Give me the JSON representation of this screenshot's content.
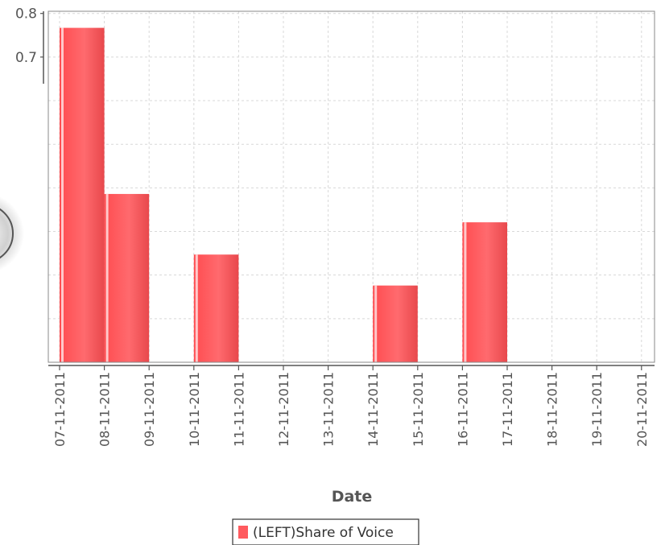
{
  "chart_data": {
    "type": "bar",
    "xlabel": "Date",
    "ylabel": "",
    "x": [
      "07-11-2011",
      "08-11-2011",
      "09-11-2011",
      "10-11-2011",
      "11-11-2011",
      "12-11-2011",
      "13-11-2011",
      "14-11-2011",
      "15-11-2011",
      "16-11-2011",
      "17-11-2011",
      "18-11-2011",
      "19-11-2011",
      "20-11-2011"
    ],
    "series": [
      {
        "name": "(LEFT)Share of Voice",
        "color": "#ff5a5e",
        "bars": [
          {
            "start": "07-11-2011",
            "value": 0.767
          },
          {
            "start": "08-11-2011",
            "value": 0.386
          },
          {
            "start": "10-11-2011",
            "value": 0.247
          },
          {
            "start": "14-11-2011",
            "value": 0.176
          },
          {
            "start": "16-11-2011",
            "value": 0.321
          }
        ]
      }
    ],
    "ylim": [
      0.0,
      0.805
    ],
    "yticks": [
      "0.7",
      "0.8"
    ],
    "grid": true,
    "legend_position": "bottom-center"
  }
}
